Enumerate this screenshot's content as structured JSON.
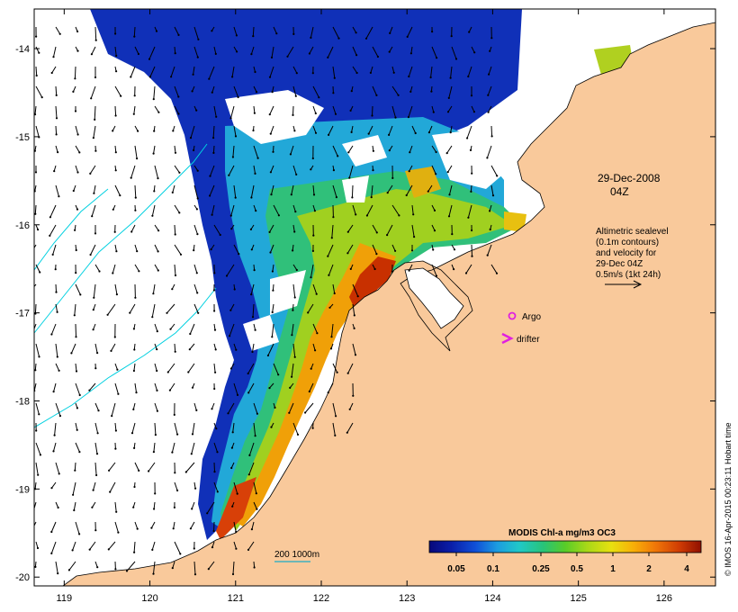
{
  "map": {
    "annotation_date": "29-Dec-2008",
    "annotation_time": "04Z",
    "info_lines": [
      "Altimetric sealevel",
      "(0.1m contours)",
      "and velocity for",
      "29-Dec 04Z",
      "0.5m/s (1kt 24h)"
    ],
    "scale_label": "200  1000m",
    "argo_label": "Argo",
    "drifter_label": "drifter",
    "credit": "© IMOS 16-Apr-2015 00:23:11 Hobart time",
    "legend": {
      "title": "MODIS Chl-a mg/m3 OC3",
      "ticks": [
        "0.05",
        "0.1",
        "0.25",
        "0.5",
        "1",
        "2",
        "4"
      ],
      "colors": [
        "#08087a",
        "#0a1ea8",
        "#1050d8",
        "#1c9ce0",
        "#20c8c8",
        "#28c478",
        "#58cc28",
        "#a8d818",
        "#e8e010",
        "#f8b008",
        "#f07808",
        "#d03c04",
        "#901000"
      ]
    },
    "x_ticks": [
      "119",
      "120",
      "121",
      "122",
      "123",
      "124",
      "125",
      "126"
    ],
    "y_ticks": [
      "-14",
      "-15",
      "-16",
      "-17",
      "-18",
      "-19",
      "-20"
    ],
    "colors": {
      "land": "#f9c99b",
      "contour": "#00d0e0",
      "marker": "#e020e0",
      "scale_bar": "#40b0c0"
    }
  }
}
